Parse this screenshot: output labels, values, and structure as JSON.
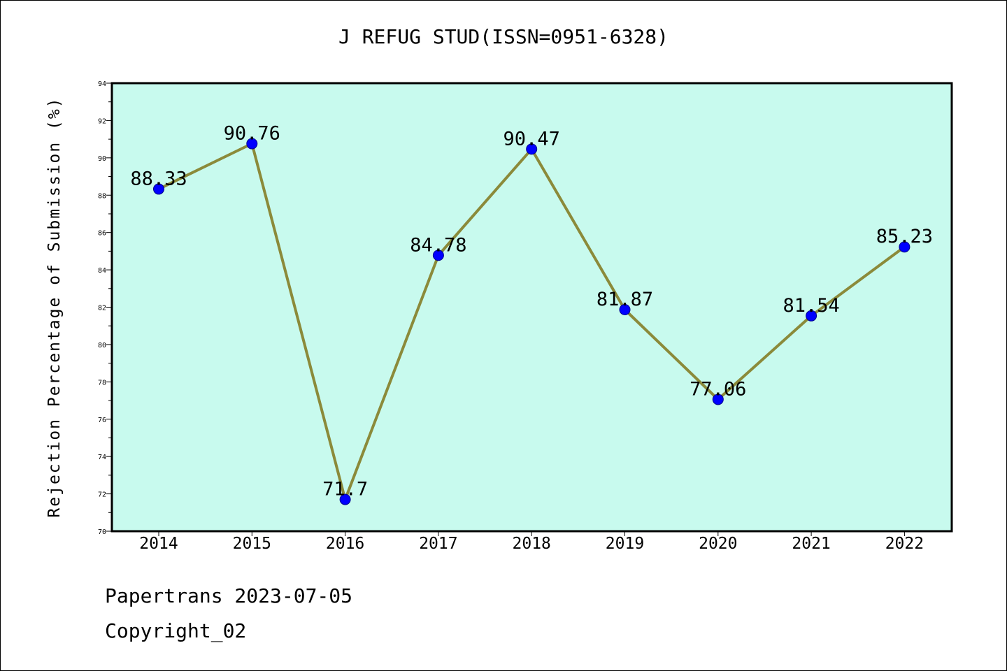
{
  "chart_data": {
    "type": "line",
    "title": "J REFUG STUD(ISSN=0951-6328)",
    "ylabel": "Rejection Percentage of Submission (%)",
    "xlabel": "",
    "categories": [
      "2014",
      "2015",
      "2016",
      "2017",
      "2018",
      "2019",
      "2020",
      "2021",
      "2022"
    ],
    "values": [
      88.33,
      90.76,
      71.7,
      84.78,
      90.47,
      81.87,
      77.06,
      81.54,
      85.23
    ],
    "data_labels": [
      "88.33",
      "90.76",
      "71.7",
      "84.78",
      "90.47",
      "81.87",
      "77.06",
      "81.54",
      "85.23"
    ],
    "ylim": [
      70,
      94
    ],
    "yticks": [
      "70",
      "72",
      "74",
      "76",
      "78",
      "80",
      "82",
      "84",
      "86",
      "88",
      "90",
      "92",
      "94"
    ],
    "grid": false,
    "colors": {
      "plot_background": "#c8faee",
      "line": "#8b8a3a",
      "marker": "#0000ff",
      "axes": "#000000"
    }
  },
  "footer": {
    "source": "Papertrans 2023-07-05",
    "copyright": "Copyright_02"
  }
}
